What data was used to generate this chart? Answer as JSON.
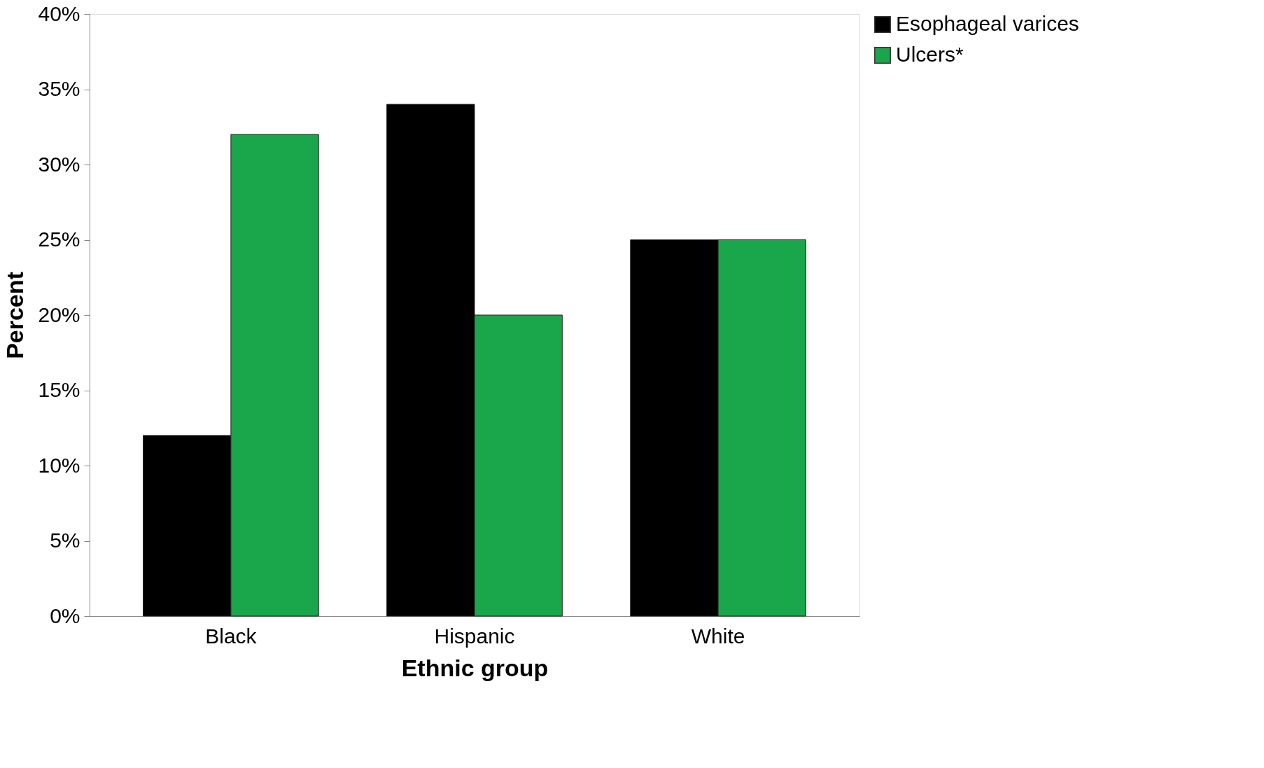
{
  "chart_data": {
    "type": "bar",
    "xlabel": "Ethnic group",
    "ylabel": "Percent",
    "categories": [
      "Black",
      "Hispanic",
      "White"
    ],
    "series": [
      {
        "name": "Esophageal varices",
        "color": "#000000",
        "values": [
          12,
          34,
          25
        ]
      },
      {
        "name": "Ulcers*",
        "color": "#1aa64a",
        "values": [
          32,
          20,
          25
        ]
      }
    ],
    "ylim": [
      0,
      40
    ],
    "yticks": [
      {
        "value": 0,
        "label": "0%"
      },
      {
        "value": 5,
        "label": "5%"
      },
      {
        "value": 10,
        "label": "10%"
      },
      {
        "value": 15,
        "label": "15%"
      },
      {
        "value": 20,
        "label": "20%"
      },
      {
        "value": 25,
        "label": "25%"
      },
      {
        "value": 30,
        "label": "30%"
      },
      {
        "value": 35,
        "label": "35%"
      },
      {
        "value": 40,
        "label": "40%"
      }
    ],
    "grid": false,
    "legend": "right"
  }
}
